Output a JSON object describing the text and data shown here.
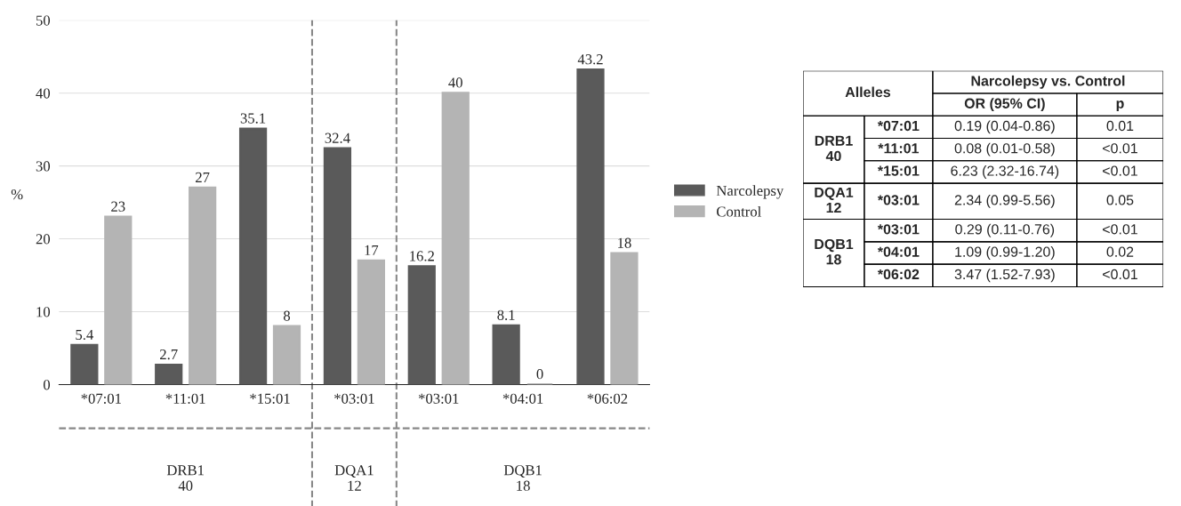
{
  "chart_data": [
    {
      "type": "bar",
      "ylabel": "%",
      "categories": [
        "*07:01",
        "*11:01",
        "*15:01",
        "*03:01",
        "*03:01",
        "*04:01",
        "*06:02"
      ],
      "series": [
        {
          "name": "Narcolepsy",
          "color": "#5a5a5a",
          "values": [
            5.4,
            2.7,
            35.1,
            32.4,
            16.2,
            8.1,
            43.2
          ]
        },
        {
          "name": "Control",
          "color": "#b4b4b4",
          "values": [
            23,
            27,
            8,
            17,
            40,
            0,
            18
          ]
        }
      ],
      "ylim": [
        0,
        50
      ],
      "yticks": [
        0,
        10,
        20,
        30,
        40,
        50
      ],
      "grid": "y",
      "legend": "right",
      "data_labels": true,
      "annotations": [
        "DRB1\n40",
        "DQA1\n12",
        "DQB1\n18"
      ]
    },
    {
      "type": "other",
      "annotations": [
        "Alleles",
        "Narcolepsy vs. Control",
        "OR (95% CI)",
        "p",
        "DRB1\n40",
        "*07:01",
        "0.19 (0.04-0.86)",
        "0.01",
        "*11:01",
        "0.08 (0.01-0.58)",
        "<0.01",
        "*15:01",
        "6.23 (2.32-16.74)",
        "<0.01",
        "DQA1\n12",
        "*03:01",
        "2.34 (0.99-5.56)",
        "0.05",
        "DQB1\n18",
        "*03:01",
        "0.29 (0.11-0.76)",
        "<0.01",
        "*04:01",
        "1.09 (0.99-1.20)",
        "0.02",
        "*06:02",
        "3.47 (1.52-7.93)",
        "<0.01"
      ]
    }
  ]
}
